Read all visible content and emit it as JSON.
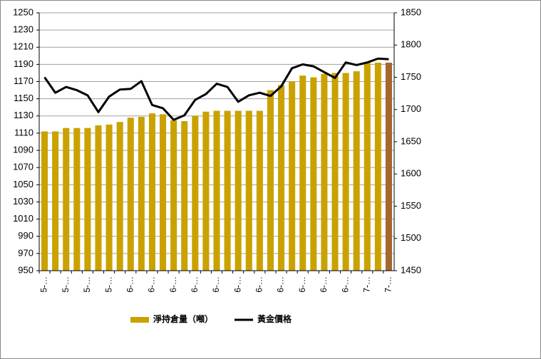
{
  "chart_data": {
    "type": "bar_line",
    "categories": [
      "5-…",
      null,
      "5-…",
      null,
      "5-…",
      null,
      "5-…",
      null,
      "6-…",
      null,
      "6-…",
      null,
      "6-…",
      null,
      "6-…",
      null,
      "6-…",
      null,
      "6-…",
      null,
      "6-…",
      null,
      "6-…",
      null,
      "6-…",
      null,
      "6-…",
      null,
      "6-…",
      null,
      "7-…",
      null,
      "7-…"
    ],
    "series": [
      {
        "name": "淨持倉量（噸）",
        "type": "bar",
        "color": "#c9a200",
        "colors": [
          "#c9a200",
          "#c9a200",
          "#c9a200",
          "#c9a200",
          "#c9a200",
          "#c9a200",
          "#c9a200",
          "#c9a200",
          "#c9a200",
          "#c9a200",
          "#c9a200",
          "#c9a200",
          "#c9a200",
          "#c9a200",
          "#c9a200",
          "#c9a200",
          "#c9a200",
          "#c9a200",
          "#c9a200",
          "#c9a200",
          "#c9a200",
          "#c9a200",
          "#c9a200",
          "#c9a200",
          "#c9a200",
          "#c9a200",
          "#c9a200",
          "#c9a200",
          "#c9a200",
          "#c9a200",
          "#c9a200",
          "#c9a200",
          "#a5672e"
        ],
        "values": [
          1112,
          1112,
          1116,
          1116,
          1116,
          1119,
          1120,
          1123,
          1128,
          1129,
          1133,
          1132,
          1125,
          1124,
          1130,
          1135,
          1136,
          1136,
          1136,
          1136,
          1136,
          1160,
          1166,
          1170,
          1177,
          1175,
          1179,
          1180,
          1180,
          1182,
          1192,
          1192,
          1192
        ]
      },
      {
        "name": "黃金價格",
        "type": "line",
        "axis": "y2",
        "color": "#000000",
        "values": [
          1750,
          1726,
          1735,
          1730,
          1722,
          1696,
          1720,
          1731,
          1732,
          1744,
          1707,
          1702,
          1684,
          1691,
          1715,
          1724,
          1740,
          1735,
          1712,
          1722,
          1726,
          1721,
          1736,
          1764,
          1770,
          1767,
          1758,
          1749,
          1773,
          1769,
          1773,
          1779,
          1778
        ]
      }
    ],
    "ylim": [
      950,
      1250
    ],
    "yticks": [
      950,
      970,
      990,
      1010,
      1030,
      1050,
      1070,
      1090,
      1110,
      1130,
      1150,
      1170,
      1190,
      1210,
      1230,
      1250
    ],
    "y2lim": [
      1450,
      1850
    ],
    "y2ticks": [
      1450,
      1500,
      1550,
      1600,
      1650,
      1700,
      1750,
      1800,
      1850
    ],
    "grid": true,
    "legend": "bottom"
  }
}
